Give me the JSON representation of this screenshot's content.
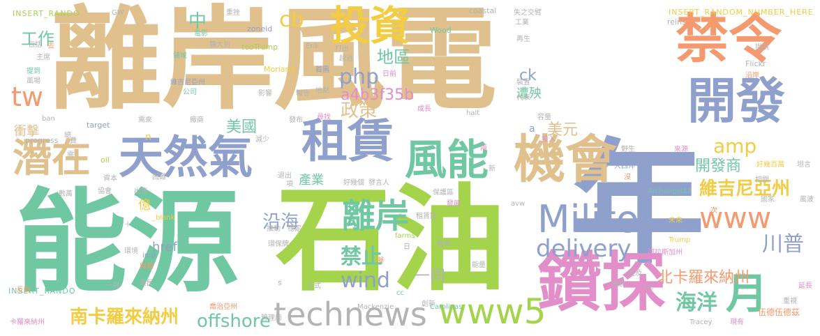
{
  "palette": {
    "tan": "#e0c08c",
    "orange": "#f59a6e",
    "blue": "#8fa0cc",
    "green": "#6fc8a2",
    "lime": "#a4d44c",
    "pink": "#e28ec8",
    "gray": "#b3b3b3",
    "yellow": "#f2cc42"
  },
  "words": [
    {
      "text": "離岸風電"
    },
    {
      "text": "能源"
    },
    {
      "text": "石油"
    },
    {
      "text": "年"
    },
    {
      "text": "禁令"
    },
    {
      "text": "開發"
    },
    {
      "text": "投資"
    },
    {
      "text": "天然氣"
    },
    {
      "text": "租賃"
    },
    {
      "text": "風能"
    },
    {
      "text": "機會"
    },
    {
      "text": "潛在"
    },
    {
      "text": "鑽探"
    },
    {
      "text": "Milito"
    },
    {
      "text": "technews"
    },
    {
      "text": "www5"
    },
    {
      "text": "www"
    },
    {
      "text": "月"
    },
    {
      "text": "離岸"
    },
    {
      "text": "delivery"
    },
    {
      "text": "tw"
    },
    {
      "text": "php"
    },
    {
      "text": "cb"
    },
    {
      "text": "地區"
    },
    {
      "text": "a4b3f35b"
    },
    {
      "text": "政策"
    },
    {
      "text": "美國"
    },
    {
      "text": "美元"
    },
    {
      "text": "amp"
    },
    {
      "text": "開發商"
    },
    {
      "text": "維吉尼亞州"
    },
    {
      "text": "北卡羅來納州"
    },
    {
      "text": "南卡羅來納州"
    },
    {
      "text": "海洋"
    },
    {
      "text": "川普"
    },
    {
      "text": "沿海"
    },
    {
      "text": "禁止"
    },
    {
      "text": "wind"
    },
    {
      "text": "offshore"
    },
    {
      "text": "一同"
    },
    {
      "text": "工作"
    },
    {
      "text": "中"
    },
    {
      "text": "ck"
    },
    {
      "text": "遭殃"
    },
    {
      "text": "衝擊"
    },
    {
      "text": "億"
    },
    {
      "text": "href"
    },
    {
      "text": "產業"
    },
    {
      "text": "INSERT_RANDO"
    },
    {
      "text": "INSERT_RANDOM_NUMBER_HERE"
    },
    {
      "text": "INSERT_RANDO"
    },
    {
      "text": "GW"
    },
    {
      "text": "coastal"
    },
    {
      "text": "Wood"
    },
    {
      "text": "zoneid"
    },
    {
      "text": "tooTrump"
    },
    {
      "text": "Erik"
    },
    {
      "text": "Moriarty"
    },
    {
      "text": "reins"
    },
    {
      "text": "Flickr"
    },
    {
      "text": "target"
    },
    {
      "text": "progress"
    },
    {
      "text": "oil"
    },
    {
      "text": "ban"
    },
    {
      "text": "_blank"
    },
    {
      "text": "img"
    },
    {
      "text": "Trump"
    },
    {
      "text": "Archangel12"
    },
    {
      "text": "avw"
    },
    {
      "text": "farms"
    },
    {
      "text": "Mackenzie"
    },
    {
      "text": "Carolinas"
    },
    {
      "text": "Tracey"
    },
    {
      "text": "cc"
    },
    {
      "text": "halt"
    },
    {
      "text": "src"
    },
    {
      "text": "n"
    },
    {
      "text": "a"
    },
    {
      "text": "s"
    },
    {
      "text": "卡羅來納州"
    },
    {
      "text": "伍德伍德茲"
    },
    {
      "text": "阿拉斯加州"
    },
    {
      "text": "大西洋"
    },
    {
      "text": "維吉尼亞州"
    },
    {
      "text": "包括"
    },
    {
      "text": "主席"
    },
    {
      "text": "提到"
    },
    {
      "text": "風場"
    },
    {
      "text": "電影"
    },
    {
      "text": "擴大到"
    },
    {
      "text": "領域"
    },
    {
      "text": "公司"
    },
    {
      "text": "影響"
    },
    {
      "text": "報告"
    },
    {
      "text": "地點"
    },
    {
      "text": "首圖"
    },
    {
      "text": "打出"
    },
    {
      "text": "超過"
    },
    {
      "text": "日前"
    },
    {
      "text": "失之交臂"
    },
    {
      "text": "工業"
    },
    {
      "text": "再生"
    },
    {
      "text": "裝置"
    },
    {
      "text": "代表"
    },
    {
      "text": "成長"
    },
    {
      "text": "容量"
    },
    {
      "text": "投入"
    },
    {
      "text": "野生"
    },
    {
      "text": "來源"
    },
    {
      "text": "好幾百萬"
    },
    {
      "text": "坦言"
    },
    {
      "text": "相關"
    },
    {
      "text": "國家"
    },
    {
      "text": "風波"
    },
    {
      "text": "未來"
    },
    {
      "text": "延長"
    },
    {
      "text": "重視"
    },
    {
      "text": "現有"
    },
    {
      "text": "傳統"
    },
    {
      "text": "危及"
    },
    {
      "text": "能量"
    },
    {
      "text": "創新"
    },
    {
      "text": "動物"
    },
    {
      "text": "保護區"
    },
    {
      "text": "發展"
    },
    {
      "text": "租賃區"
    },
    {
      "text": "好幾個"
    },
    {
      "text": "發言人"
    },
    {
      "text": "推動"
    },
    {
      "text": "穩定"
    },
    {
      "text": "環保牌"
    },
    {
      "text": "管理局"
    },
    {
      "text": "正式"
    },
    {
      "text": "環境"
    },
    {
      "text": "興趣"
    },
    {
      "text": "選民"
    },
    {
      "text": "反對"
    },
    {
      "text": "一陣"
    },
    {
      "text": "喬治亞州"
    },
    {
      "text": "數萬"
    },
    {
      "text": "協會"
    },
    {
      "text": "資本"
    },
    {
      "text": "困難"
    },
    {
      "text": "出售"
    },
    {
      "text": "退出"
    },
    {
      "text": "減少"
    },
    {
      "text": "需來"
    },
    {
      "text": "總"
    },
    {
      "text": "廠商"
    },
    {
      "text": "發布"
    },
    {
      "text": "尋找"
    },
    {
      "text": "重挫"
    },
    {
      "text": "提供"
    },
    {
      "text": "沿岸"
    },
    {
      "text": "需"
    },
    {
      "text": "項"
    },
    {
      "text": "新"
    },
    {
      "text": "兩"
    },
    {
      "text": "沒"
    },
    {
      "text": "次"
    },
    {
      "text": "日"
    },
    {
      "text": "擬"
    },
    {
      "text": "去"
    },
    {
      "text": "費"
    },
    {
      "text": "＋"
    },
    {
      "text": "＋"
    }
  ]
}
